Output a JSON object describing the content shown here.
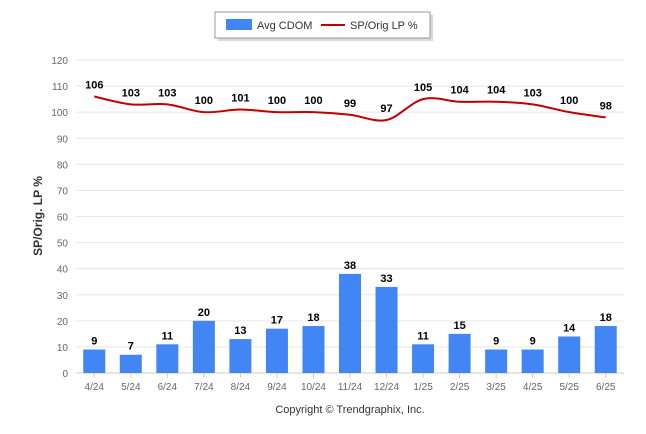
{
  "chart_data": {
    "type": "bar",
    "categories": [
      "4/24",
      "5/24",
      "6/24",
      "7/24",
      "8/24",
      "9/24",
      "10/24",
      "11/24",
      "12/24",
      "1/25",
      "2/25",
      "3/25",
      "4/25",
      "5/25",
      "6/25"
    ],
    "series": [
      {
        "name": "Avg CDOM",
        "type": "bar",
        "color": "#4285f4",
        "values": [
          9,
          7,
          11,
          20,
          13,
          17,
          18,
          38,
          33,
          11,
          15,
          9,
          9,
          14,
          18
        ]
      },
      {
        "name": "SP/Orig LP %",
        "type": "line",
        "color": "#c00000",
        "values": [
          106,
          103,
          103,
          100,
          101,
          100,
          100,
          99,
          97,
          105,
          104,
          104,
          103,
          100,
          98
        ]
      }
    ],
    "ylabel": "SP/Orig. LP %",
    "ylim": [
      0,
      120
    ],
    "yticks": [
      "0",
      "10",
      "20",
      "30",
      "40",
      "50",
      "60",
      "70",
      "80",
      "90",
      "100",
      "110",
      "120"
    ],
    "grid": true,
    "legend_position": "top-center"
  },
  "credit": "Copyright © Trendgraphix, Inc.",
  "colors": {
    "grid": "#e6e6e6",
    "axis": "#cccccc"
  }
}
